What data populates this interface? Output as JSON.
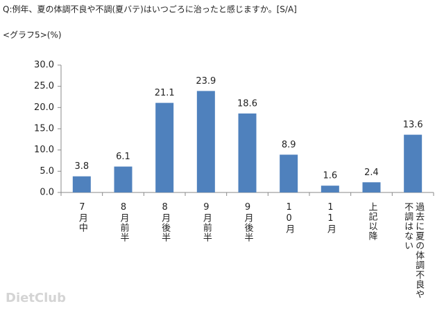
{
  "chart_data": {
    "type": "bar",
    "title": "Q:例年、夏の体調不良や不調(夏バテ)はいつごろに治ったと感じますか。[S/A]",
    "subtitle": "<グラフ5>(%)",
    "categories": [
      "7月中",
      "8月前半",
      "8月後半",
      "9月前半",
      "9月後半",
      "10月",
      "11月",
      "上記以降",
      "過去に夏の体調不良や不調はない"
    ],
    "values": [
      3.8,
      6.1,
      21.1,
      23.9,
      18.6,
      8.9,
      1.6,
      2.4,
      13.6
    ],
    "color": "#4f81bd",
    "ylim": [
      0,
      30
    ],
    "yticks": [
      {
        "value": 0,
        "label": "0.0"
      },
      {
        "value": 5,
        "label": "5.0"
      },
      {
        "value": 10,
        "label": "10.0"
      },
      {
        "value": 15,
        "label": "15.0"
      },
      {
        "value": 20,
        "label": "20.0"
      },
      {
        "value": 25,
        "label": "25.0"
      },
      {
        "value": 30,
        "label": "30.0"
      }
    ],
    "grid": false
  },
  "watermark": "DietClub"
}
